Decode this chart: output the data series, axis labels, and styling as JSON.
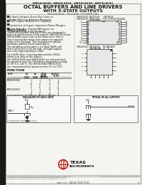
{
  "title_line1": "SN54LS540, SN54LS541, SN74LS540, SN74LS541",
  "title_line2": "OCTAL BUFFERS AND LINE DRIVERS",
  "title_line3": "WITH 3-STATE OUTPUTS",
  "subtitle": "SN74LS541N3   SDLS049A - OCTOBER 1981",
  "bg_color": "#f5f5f0",
  "black": "#111111",
  "features": [
    "3-State Outputs Drive Bus Lines or Buffer Memory Address Registers",
    "P-N-P Inputs Reduce D-C Loading",
    "Hysteresis at Inputs Improves Noise Margins",
    "Data Flow-Bus Placed (All Inputs on Opposite Side from Outputs)"
  ],
  "pkg_label1": "SN54LS540, SN54LS541  -  J PACKAGE",
  "pkg_label2": "SN74LS540, SN74LS541  -  DW, N OR NS PACKAGE",
  "pkg_label3": "(TOP VIEW)",
  "fk_label1": "SN54LS540, SN54LS541  -  FK PACKAGE",
  "fk_label2": "(TOP VIEW)",
  "desc1": "These octal buffers and line drivers are designed to have the performance of the popular SN54S/74S-family SN74LS406 series and, at the same time, offer a choice having the inputs and outputs on opposite sides of the package. This arrangement greatly facilitates printed circuit board layout.",
  "desc2": "The disabling control gate is a 2-Input NOR such that if either G1 or G2 are high, all eight outputs are in the high-impedance state.",
  "desc3": "For LS540 other, inverting data and the LS541 allows true data at the outputs.",
  "desc4": "The SN54LS540 and SN54LS541 are characterized for operation over the full military temperature range of -55°C to 125°C. The SN74LS540/SN74LS541 are characterized for operation from 0°C to 70°C.",
  "left_pins": [
    "1G",
    "2G",
    "A1",
    "A2",
    "A3",
    "A4",
    "A5",
    "A6",
    "A7",
    "A8"
  ],
  "right_pins": [
    "VCC",
    "Y8",
    "Y7",
    "Y6",
    "Y5",
    "Y4",
    "Y3",
    "Y2",
    "Y1",
    "GND"
  ],
  "left_nums": [
    "1",
    "2",
    "3",
    "4",
    "5",
    "6",
    "7",
    "8",
    "9",
    "10"
  ],
  "right_nums": [
    "20",
    "19",
    "18",
    "17",
    "16",
    "15",
    "14",
    "13",
    "12",
    "11"
  ]
}
